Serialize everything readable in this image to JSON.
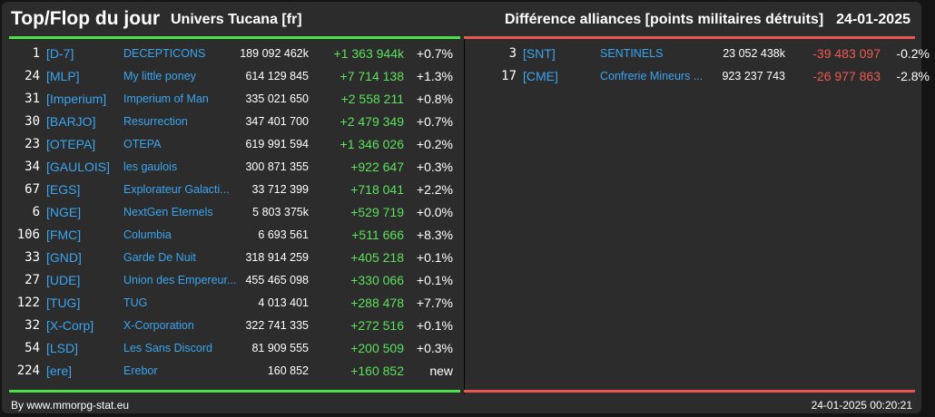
{
  "header": {
    "title": "Top/Flop du jour",
    "subtitle": "Univers Tucana [fr]",
    "metric": "Différence alliances [points militaires détruits]",
    "date": "24-01-2025"
  },
  "colors": {
    "positive": "#5ce15c",
    "negative": "#ee5a52",
    "tag": "#3aa5f0",
    "top_rule": "#4be14b",
    "flop_rule": "#e8564e"
  },
  "top": [
    {
      "rank": "1",
      "tag": "[D-7]",
      "name": "DECEPTICONS",
      "total": "189 092 462k",
      "diff": "+1 363 944k",
      "pct": "+0.7%"
    },
    {
      "rank": "24",
      "tag": "[MLP]",
      "name": "My little poney",
      "total": "614 129 845",
      "diff": "+7 714 138",
      "pct": "+1.3%"
    },
    {
      "rank": "31",
      "tag": "[Imperium]",
      "name": "Imperium of Man",
      "total": "335 021 650",
      "diff": "+2 558 211",
      "pct": "+0.8%"
    },
    {
      "rank": "30",
      "tag": "[BARJO]",
      "name": "Resurrection",
      "total": "347 401 700",
      "diff": "+2 479 349",
      "pct": "+0.7%"
    },
    {
      "rank": "23",
      "tag": "[OTEPA]",
      "name": "OTEPA",
      "total": "619 991 594",
      "diff": "+1 346 026",
      "pct": "+0.2%"
    },
    {
      "rank": "34",
      "tag": "[GAULOIS]",
      "name": "les gaulois",
      "total": "300 871 355",
      "diff": "+922 647",
      "pct": "+0.3%"
    },
    {
      "rank": "67",
      "tag": "[EGS]",
      "name": "Explorateur Galacti...",
      "total": "33 712 399",
      "diff": "+718 041",
      "pct": "+2.2%"
    },
    {
      "rank": "6",
      "tag": "[NGE]",
      "name": "NextGen Eternels",
      "total": "5 803 375k",
      "diff": "+529 719",
      "pct": "+0.0%"
    },
    {
      "rank": "106",
      "tag": "[FMC]",
      "name": "Columbia",
      "total": "6 693 561",
      "diff": "+511 666",
      "pct": "+8.3%"
    },
    {
      "rank": "33",
      "tag": "[GND]",
      "name": "Garde De Nuit",
      "total": "318 914 259",
      "diff": "+405 218",
      "pct": "+0.1%"
    },
    {
      "rank": "27",
      "tag": "[UDE]",
      "name": "Union des Empereur...",
      "total": "455 465 098",
      "diff": "+330 066",
      "pct": "+0.1%"
    },
    {
      "rank": "122",
      "tag": "[TUG]",
      "name": "TUG",
      "total": "4 013 401",
      "diff": "+288 478",
      "pct": "+7.7%"
    },
    {
      "rank": "32",
      "tag": "[X-Corp]",
      "name": "X-Corporation",
      "total": "322 741 335",
      "diff": "+272 516",
      "pct": "+0.1%"
    },
    {
      "rank": "54",
      "tag": "[LSD]",
      "name": "Les Sans Discord",
      "total": "81 909 555",
      "diff": "+200 509",
      "pct": "+0.3%"
    },
    {
      "rank": "224",
      "tag": "[ere]",
      "name": "Erebor",
      "total": "160 852",
      "diff": "+160 852",
      "pct": "new"
    }
  ],
  "flop": [
    {
      "rank": "3",
      "tag": "[SNT]",
      "name": "SENTINELS",
      "total": "23 052 438k",
      "diff": "-39 483 097",
      "pct": "-0.2%"
    },
    {
      "rank": "17",
      "tag": "[CME]",
      "name": "Confrerie Mineurs ...",
      "total": "923 237 743",
      "diff": "-26 977 863",
      "pct": "-2.8%"
    }
  ],
  "footer": {
    "credit": "By www.mmorpg-stat.eu",
    "timestamp": "24-01-2025 00:20:21"
  }
}
